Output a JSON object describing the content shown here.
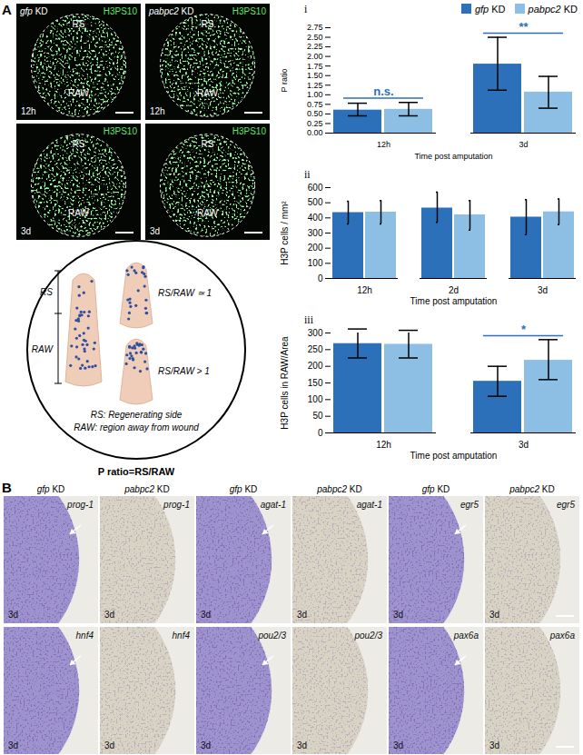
{
  "figure": {
    "panel_a": {
      "label": "A",
      "stain": "H3PS10",
      "regions": [
        "RS",
        "RAW"
      ],
      "conditions": [
        "gfp KD",
        "pabpc2 KD"
      ],
      "times": [
        "12h",
        "3d"
      ],
      "diagram": {
        "bracket_labels": [
          "RS",
          "RAW"
        ],
        "ratio_labels": [
          "RS/RAW ≃ 1",
          "RS/RAW > 1"
        ],
        "definitions": [
          "RS: Regenerating side",
          "RAW: region away from wound"
        ],
        "caption": "P ratio=RS/RAW"
      }
    },
    "panel_b": {
      "label": "B",
      "conditions": [
        "gfp KD",
        "pabpc2 KD",
        "gfp KD",
        "pabpc2 KD",
        "gfp KD",
        "pabpc2 KD"
      ],
      "genes": [
        [
          "prog-1",
          "prog-1",
          "agat-1",
          "agat-1",
          "egr5",
          "egr5"
        ],
        [
          "hnf4",
          "hnf4",
          "pou2/3",
          "pou2/3",
          "pax6a",
          "pax6a"
        ]
      ],
      "time": "3d"
    }
  },
  "chart_data": [
    {
      "type": "bar",
      "panel": "i",
      "y_label": "P ratio",
      "x_label": "Time post amputation",
      "categories": [
        "12h",
        "3d"
      ],
      "series": [
        {
          "name": "gfp KD",
          "color": "#2b70b8",
          "values": [
            0.6,
            1.8
          ],
          "error_low": [
            0.45,
            1.12
          ],
          "error_high": [
            0.78,
            2.5
          ]
        },
        {
          "name": "pabpc2 KD",
          "color": "#8cbfe3",
          "values": [
            0.62,
            1.07
          ],
          "error_low": [
            0.45,
            0.65
          ],
          "error_high": [
            0.8,
            1.48
          ]
        }
      ],
      "ylim": [
        0,
        2.75
      ],
      "yticks": [
        {
          "value": 0,
          "label": "0.00"
        },
        {
          "value": 0.25,
          "label": "0.25"
        },
        {
          "value": 0.5,
          "label": "0.50"
        },
        {
          "value": 0.75,
          "label": "0.75"
        },
        {
          "value": 1,
          "label": "1.00"
        },
        {
          "value": 1.25,
          "label": "1.25"
        },
        {
          "value": 1.5,
          "label": "1.50"
        },
        {
          "value": 1.75,
          "label": "1.75"
        },
        {
          "value": 2,
          "label": "2.00"
        },
        {
          "value": 2.25,
          "label": "2.25"
        },
        {
          "value": 2.5,
          "label": "2.50"
        },
        {
          "value": 2.75,
          "label": "2.75"
        }
      ],
      "grid": false,
      "legend": "top-right",
      "annotations": [
        {
          "category": "12h",
          "text": "n.s."
        },
        {
          "category": "3d",
          "text": "**"
        }
      ]
    },
    {
      "type": "bar",
      "panel": "ii",
      "y_label": "H3P cells / mm²",
      "x_label": "Time post amputation",
      "categories": [
        "12h",
        "2d",
        "3d"
      ],
      "series": [
        {
          "name": "gfp KD",
          "color": "#2b70b8",
          "values": [
            435,
            465,
            405
          ],
          "error_low": [
            360,
            370,
            290
          ],
          "error_high": [
            510,
            570,
            520
          ]
        },
        {
          "name": "pabpc2 KD",
          "color": "#8cbfe3",
          "values": [
            438,
            420,
            440
          ],
          "error_low": [
            360,
            320,
            355
          ],
          "error_high": [
            515,
            515,
            525
          ]
        }
      ],
      "ylim": [
        0,
        600
      ],
      "yticks": [
        0,
        100,
        200,
        300,
        400,
        500,
        600
      ],
      "grid": false
    },
    {
      "type": "bar",
      "panel": "iii",
      "y_label": "H3P cells in RAW/Area",
      "x_label": "Time post amputation",
      "categories": [
        "12h",
        "3d"
      ],
      "series": [
        {
          "name": "gfp KD",
          "color": "#2b70b8",
          "values": [
            268,
            155
          ],
          "error_low": [
            225,
            110
          ],
          "error_high": [
            312,
            200
          ]
        },
        {
          "name": "pabpc2 KD",
          "color": "#8cbfe3",
          "values": [
            266,
            218
          ],
          "error_low": [
            225,
            160
          ],
          "error_high": [
            308,
            280
          ]
        }
      ],
      "ylim": [
        0,
        300
      ],
      "yticks": [
        0,
        50,
        100,
        150,
        200,
        250,
        300
      ],
      "grid": false,
      "annotations": [
        {
          "category": "3d",
          "text": "*"
        }
      ]
    }
  ]
}
